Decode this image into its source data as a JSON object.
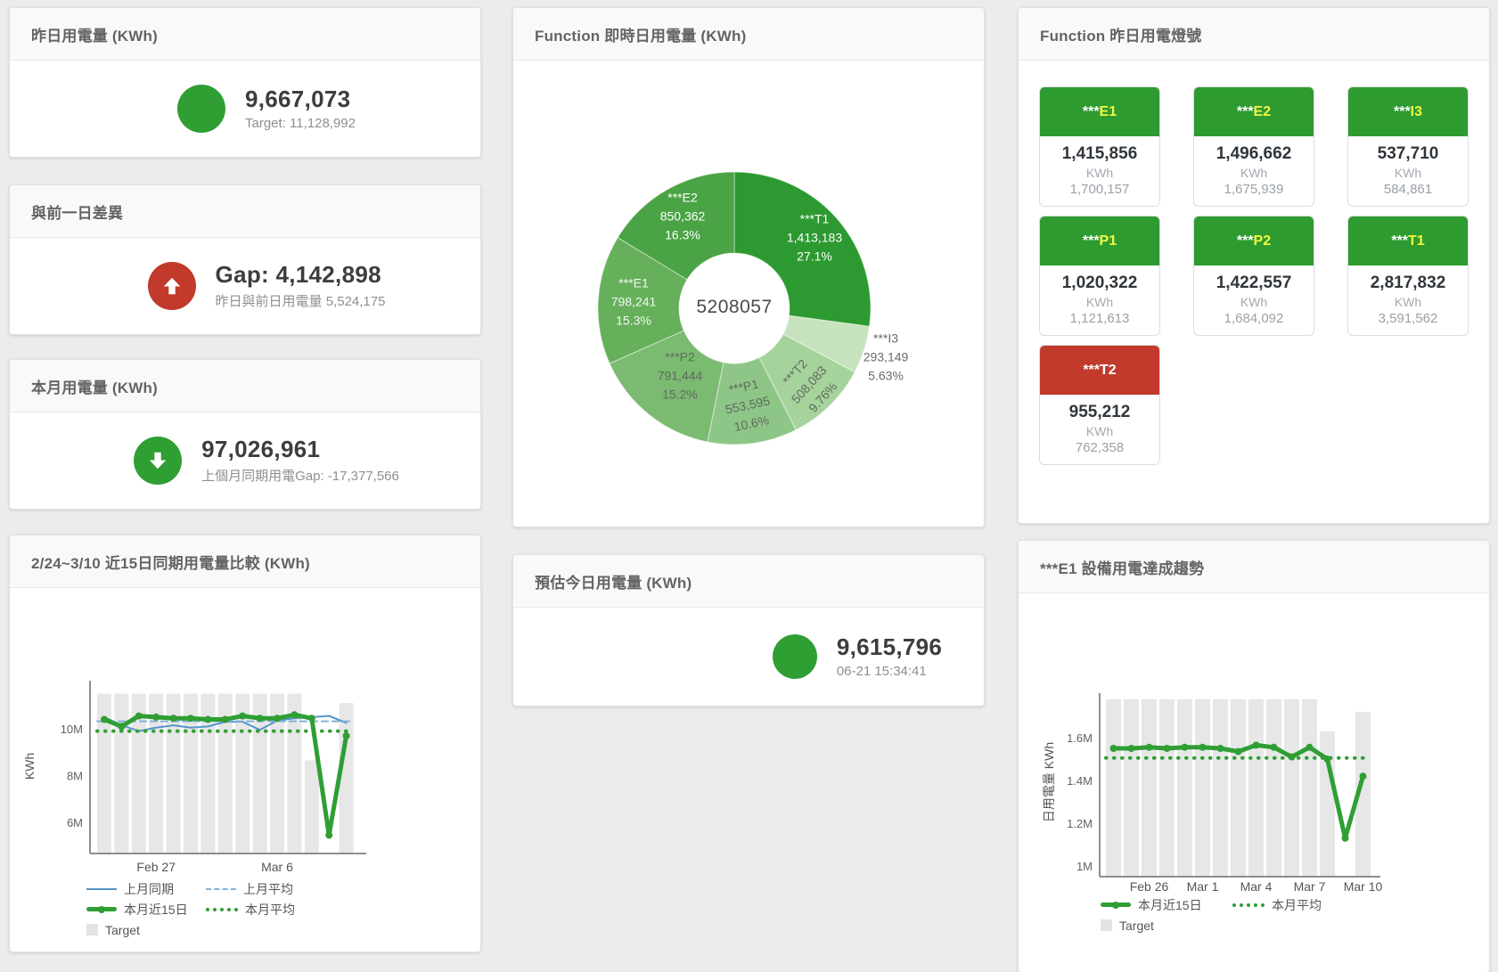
{
  "app": {
    "background": "#ececec"
  },
  "colors": {
    "green": "#2f9e33",
    "green_tile_header": "#2e9b31",
    "red": "#c13a2b",
    "blue": "#5596c8",
    "blue_light": "#7fb2dc",
    "target_bar_gray": "#e7e7e7",
    "tile_code_yellow": "#f4f63f"
  },
  "kpis": {
    "yesterday": {
      "title": "昨日用電量 (KWh)",
      "value": "9,667,073",
      "subtitle": "Target: 11,128,992",
      "status": "green",
      "icon": "circle"
    },
    "gap": {
      "title": "與前一日差異",
      "value": "Gap: 4,142,898",
      "subtitle": "昨日與前日用電量 5,524,175",
      "status": "red",
      "icon": "arrow-up"
    },
    "month": {
      "title": "本月用電量 (KWh)",
      "value": "97,026,961",
      "subtitle": "上個月同期用電Gap: -17,377,566",
      "status": "green",
      "icon": "arrow-down"
    },
    "estimate": {
      "title": "預估今日用電量 (KWh)",
      "value": "9,615,796",
      "subtitle": "06-21 15:34:41",
      "status": "green",
      "icon": "circle"
    }
  },
  "lights": {
    "title": "Function 昨日用電燈號",
    "tiles": [
      {
        "prefix": "***",
        "code": "E1",
        "value": "1,415,856",
        "unit": "KWh",
        "target": "1,700,157",
        "status": "green"
      },
      {
        "prefix": "***",
        "code": "E2",
        "value": "1,496,662",
        "unit": "KWh",
        "target": "1,675,939",
        "status": "green"
      },
      {
        "prefix": "***",
        "code": "I3",
        "value": "537,710",
        "unit": "KWh",
        "target": "584,861",
        "status": "green"
      },
      {
        "prefix": "***",
        "code": "P1",
        "value": "1,020,322",
        "unit": "KWh",
        "target": "1,121,613",
        "status": "green"
      },
      {
        "prefix": "***",
        "code": "P2",
        "value": "1,422,557",
        "unit": "KWh",
        "target": "1,684,092",
        "status": "green"
      },
      {
        "prefix": "***",
        "code": "T1",
        "value": "2,817,832",
        "unit": "KWh",
        "target": "3,591,562",
        "status": "green"
      },
      {
        "prefix": "***",
        "code": "T2",
        "value": "955,212",
        "unit": "KWh",
        "target": "762,358",
        "status": "red"
      }
    ]
  },
  "chart_data": [
    {
      "id": "realtime-donut",
      "type": "pie",
      "title": "Function 即時日用電量 (KWh)",
      "center_label": "5208057",
      "slices": [
        {
          "name": "***T1",
          "value": 1413183,
          "value_label": "1,413,183",
          "pct": 27.1,
          "pct_label": "27.1%",
          "color": "#2c9a30",
          "label_color": "#ffffff",
          "label_r": 120
        },
        {
          "name": "***I3",
          "value": 293149,
          "value_label": "293,149",
          "pct": 5.63,
          "pct_label": "5.63%",
          "color": "#c6e3bd",
          "label_color": "#6a6a6a",
          "label_r": 179,
          "label_outside": true
        },
        {
          "name": "***T2",
          "value": 508083,
          "value_label": "508,083",
          "pct": 9.76,
          "pct_label": "9.76%",
          "color": "#a6d29c",
          "label_color": "#5f6a5f",
          "label_r": 120,
          "label_rotate": -48
        },
        {
          "name": "***P1",
          "value": 553595,
          "value_label": "553,595",
          "pct": 10.6,
          "pct_label": "10.6%",
          "color": "#8ec687",
          "label_color": "#5f6a5f",
          "label_r": 110,
          "label_rotate": -12
        },
        {
          "name": "***P2",
          "value": 791444,
          "value_label": "791,444",
          "pct": 15.2,
          "pct_label": "15.2%",
          "color": "#7bba71",
          "label_color": "#5f6a5f",
          "label_r": 98
        },
        {
          "name": "***E1",
          "value": 798241,
          "value_label": "798,241",
          "pct": 15.3,
          "pct_label": "15.3%",
          "color": "#66b05c",
          "label_color": "#f2f7f1",
          "label_r": 113
        },
        {
          "name": "***E2",
          "value": 850362,
          "value_label": "850,362",
          "pct": 16.3,
          "pct_label": "16.3%",
          "color": "#4aa344",
          "label_color": "#ffffff",
          "label_r": 118
        }
      ]
    },
    {
      "id": "compare-15day",
      "type": "line",
      "title": "2/24~3/10 近15日同期用電量比較 (KWh)",
      "ylabel": "KWh",
      "unit": "M KWh",
      "ylim": [
        4.65,
        11.9
      ],
      "n_points": 15,
      "yticks": [
        {
          "value": 6,
          "label": "6M"
        },
        {
          "value": 8,
          "label": "8M"
        },
        {
          "value": 10,
          "label": "10M"
        }
      ],
      "xticks": [
        {
          "index": 3,
          "label": "Feb 27"
        },
        {
          "index": 10,
          "label": "Mar 6"
        }
      ],
      "bars": {
        "name": "Target",
        "color": "#e7e7e7",
        "values": [
          11.5,
          11.5,
          11.5,
          11.5,
          11.5,
          11.5,
          11.5,
          11.5,
          11.5,
          11.5,
          11.5,
          11.5,
          8.65,
          null,
          11.1
        ]
      },
      "series": [
        {
          "name": "上月同期",
          "color": "#5596c8",
          "style": "solid",
          "width": 2,
          "values": [
            10.5,
            10.15,
            9.9,
            10.05,
            10.15,
            10.05,
            10.1,
            10.3,
            10.3,
            9.95,
            10.35,
            10.45,
            10.5,
            10.55,
            10.25
          ]
        },
        {
          "name": "上月平均",
          "color": "#7fb2dc",
          "style": "dashed",
          "width": 2,
          "constant": 10.32
        },
        {
          "name": "本月近15日",
          "color": "#2f9e33",
          "style": "solid",
          "width": 5,
          "markers": true,
          "values": [
            10.4,
            10.1,
            10.55,
            10.5,
            10.45,
            10.45,
            10.4,
            10.4,
            10.55,
            10.45,
            10.45,
            10.6,
            10.45,
            5.45,
            9.7
          ]
        },
        {
          "name": "本月平均",
          "color": "#2f9e33",
          "style": "dotted",
          "width": 4,
          "constant": 9.9
        }
      ],
      "legend_rows": [
        [
          {
            "label": "上月同期",
            "swatch": "line",
            "color": "#5596c8"
          },
          {
            "label": "上月平均",
            "swatch": "dashed",
            "color": "#7fb2dc"
          }
        ],
        [
          {
            "label": "本月近15日",
            "swatch": "thick",
            "color": "#2f9e33"
          },
          {
            "label": "本月平均",
            "swatch": "dots",
            "color": "#2f9e33"
          }
        ],
        [
          {
            "label": "Target",
            "swatch": "box",
            "color": "#e3e3e3"
          }
        ]
      ]
    },
    {
      "id": "e1-trend",
      "type": "line",
      "title": "***E1 設備用電達成趨勢",
      "ylabel": "日用電量 KWh",
      "unit": "M KWh",
      "ylim": [
        0.95,
        1.85
      ],
      "n_points": 15,
      "yticks": [
        {
          "value": 1.0,
          "label": "1M"
        },
        {
          "value": 1.2,
          "label": "1.2M"
        },
        {
          "value": 1.4,
          "label": "1.4M"
        },
        {
          "value": 1.6,
          "label": "1.6M"
        }
      ],
      "xticks": [
        {
          "index": 2,
          "label": "Feb 26"
        },
        {
          "index": 5,
          "label": "Mar 1"
        },
        {
          "index": 8,
          "label": "Mar 4"
        },
        {
          "index": 11,
          "label": "Mar 7"
        },
        {
          "index": 14,
          "label": "Mar 10"
        }
      ],
      "bars": {
        "name": "Target",
        "color": "#e7e7e7",
        "values": [
          1.78,
          1.78,
          1.78,
          1.78,
          1.78,
          1.78,
          1.78,
          1.78,
          1.78,
          1.78,
          1.78,
          1.78,
          1.63,
          null,
          1.72
        ]
      },
      "series": [
        {
          "name": "本月近15日",
          "color": "#2f9e33",
          "style": "solid",
          "width": 5,
          "markers": true,
          "values": [
            1.55,
            1.55,
            1.555,
            1.55,
            1.555,
            1.555,
            1.55,
            1.535,
            1.565,
            1.555,
            1.51,
            1.555,
            1.5,
            1.13,
            1.42
          ]
        },
        {
          "name": "本月平均",
          "color": "#2f9e33",
          "style": "dotted",
          "width": 4,
          "constant": 1.505
        }
      ],
      "legend_rows": [
        [
          {
            "label": "本月近15日",
            "swatch": "thick",
            "color": "#2f9e33"
          },
          {
            "label": "本月平均",
            "swatch": "dots",
            "color": "#2f9e33"
          }
        ],
        [
          {
            "label": "Target",
            "swatch": "box",
            "color": "#e3e3e3"
          }
        ]
      ]
    }
  ]
}
